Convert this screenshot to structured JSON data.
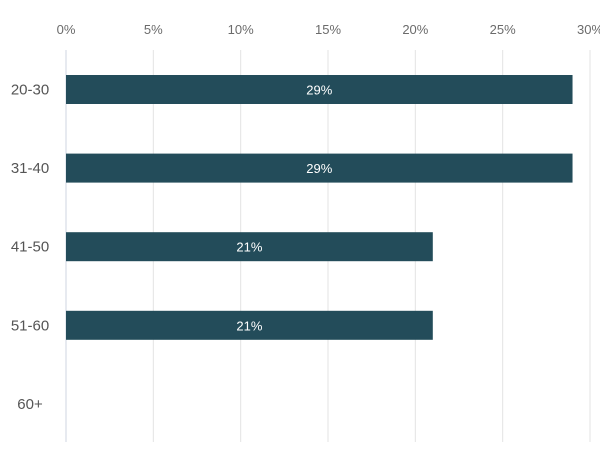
{
  "chart_data": {
    "type": "bar",
    "orientation": "horizontal",
    "categories": [
      "20-30",
      "31-40",
      "41-50",
      "51-60",
      "60+"
    ],
    "values": [
      29,
      29,
      21,
      21,
      0
    ],
    "data_labels": [
      "29%",
      "29%",
      "21%",
      "21%",
      ""
    ],
    "xlim": [
      0,
      30
    ],
    "x_ticks": [
      0,
      5,
      10,
      15,
      20,
      25,
      30
    ],
    "x_tick_labels": [
      "0%",
      "5%",
      "10%",
      "15%",
      "20%",
      "25%",
      "30%"
    ],
    "x_axis_position": "top",
    "grid": true,
    "bar_color": "#234c5a",
    "title": "",
    "xlabel": "",
    "ylabel": ""
  }
}
